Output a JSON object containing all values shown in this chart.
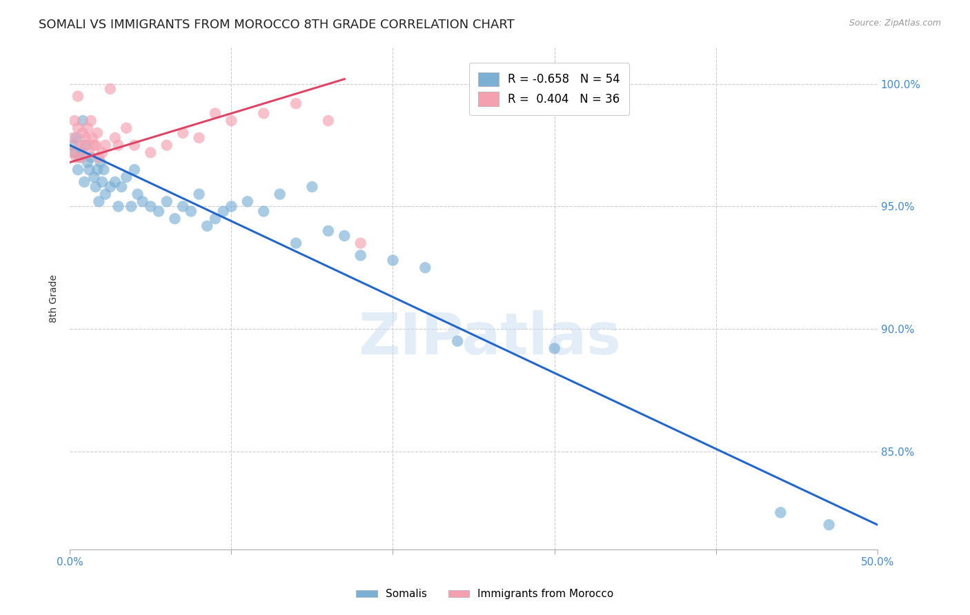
{
  "title": "SOMALI VS IMMIGRANTS FROM MOROCCO 8TH GRADE CORRELATION CHART",
  "source": "Source: ZipAtlas.com",
  "ylabel": "8th Grade",
  "xlim": [
    0.0,
    50.0
  ],
  "ylim": [
    81.0,
    101.5
  ],
  "watermark_text": "ZIPatlas",
  "legend1_label": "R = -0.658   N = 54",
  "legend2_label": "R =  0.404   N = 36",
  "blue_color": "#7BAFD4",
  "pink_color": "#F4A0B0",
  "line_blue": "#2266CC",
  "line_pink": "#DD4466",
  "somali_x": [
    0.2,
    0.3,
    0.4,
    0.5,
    0.6,
    0.7,
    0.8,
    0.9,
    1.0,
    1.1,
    1.2,
    1.3,
    1.5,
    1.6,
    1.7,
    1.8,
    1.9,
    2.0,
    2.1,
    2.2,
    2.5,
    2.8,
    3.0,
    3.2,
    3.5,
    3.8,
    4.0,
    4.2,
    4.5,
    5.0,
    5.5,
    6.0,
    6.5,
    7.0,
    7.5,
    8.0,
    8.5,
    9.0,
    9.5,
    10.0,
    11.0,
    12.0,
    13.0,
    14.0,
    15.0,
    16.0,
    17.0,
    18.0,
    20.0,
    22.0,
    24.0,
    30.0,
    44.0,
    47.0
  ],
  "somali_y": [
    97.5,
    97.2,
    97.8,
    96.5,
    97.0,
    97.2,
    98.5,
    96.0,
    97.5,
    96.8,
    96.5,
    97.0,
    96.2,
    95.8,
    96.5,
    95.2,
    96.8,
    96.0,
    96.5,
    95.5,
    95.8,
    96.0,
    95.0,
    95.8,
    96.2,
    95.0,
    96.5,
    95.5,
    95.2,
    95.0,
    94.8,
    95.2,
    94.5,
    95.0,
    94.8,
    95.5,
    94.2,
    94.5,
    94.8,
    95.0,
    95.2,
    94.8,
    95.5,
    93.5,
    95.8,
    94.0,
    93.8,
    93.0,
    92.8,
    92.5,
    89.5,
    89.2,
    82.5,
    82.0
  ],
  "morocco_x": [
    0.1,
    0.2,
    0.3,
    0.4,
    0.5,
    0.6,
    0.7,
    0.8,
    0.9,
    1.0,
    1.1,
    1.2,
    1.3,
    1.4,
    1.5,
    1.6,
    1.7,
    1.8,
    2.0,
    2.2,
    2.5,
    2.8,
    3.0,
    3.5,
    4.0,
    5.0,
    6.0,
    7.0,
    8.0,
    9.0,
    10.0,
    12.0,
    14.0,
    16.0,
    18.0,
    0.5
  ],
  "morocco_y": [
    97.2,
    97.8,
    98.5,
    97.0,
    98.2,
    97.5,
    97.0,
    98.0,
    97.5,
    97.8,
    98.2,
    97.2,
    98.5,
    97.8,
    97.5,
    97.5,
    98.0,
    97.0,
    97.2,
    97.5,
    99.8,
    97.8,
    97.5,
    98.2,
    97.5,
    97.2,
    97.5,
    98.0,
    97.8,
    98.8,
    98.5,
    98.8,
    99.2,
    98.5,
    93.5,
    99.5
  ],
  "blue_line_x": [
    0.0,
    50.0
  ],
  "blue_line_y": [
    97.5,
    82.0
  ],
  "pink_line_x": [
    0.0,
    17.0
  ],
  "pink_line_y": [
    96.8,
    100.2
  ],
  "background_color": "#FFFFFF",
  "grid_color": "#CCCCCC",
  "tick_color": "#4488CC",
  "title_fontsize": 13,
  "axis_label_fontsize": 10
}
